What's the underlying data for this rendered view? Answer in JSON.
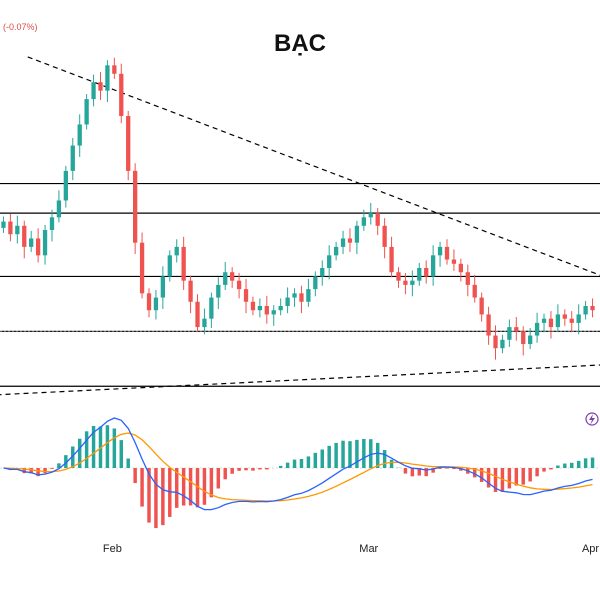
{
  "chart_data": {
    "type": "candlestick",
    "title": "BẠC",
    "change_text": "(-0.07%)",
    "x_tick_labels": [
      "Feb",
      "Mar",
      "Apr"
    ],
    "colors": {
      "up": "#26a69a",
      "down": "#ef5350",
      "macd_line": "#2962ff",
      "signal_line": "#ff9800",
      "hist_up": "#26a69a",
      "hist_down": "#ef5350",
      "levels": "#000000",
      "trendline": "#000000"
    },
    "horizontal_levels": [
      33.6,
      32.9,
      31.4,
      30.1,
      28.8
    ],
    "trendlines": [
      {
        "label": "falling",
        "points": [
          [
            4,
            36.6
          ],
          [
            111,
            29.9
          ]
        ]
      },
      {
        "label": "rising",
        "points": [
          [
            0,
            28.6
          ],
          [
            111,
            29.5
          ]
        ]
      }
    ],
    "closes": [
      32.7,
      32.4,
      32.6,
      32.1,
      32.3,
      31.9,
      32.5,
      32.8,
      33.2,
      33.9,
      34.5,
      35.0,
      35.6,
      36.0,
      35.8,
      36.4,
      36.2,
      35.2,
      33.9,
      32.2,
      31.0,
      30.6,
      30.9,
      31.4,
      31.9,
      32.1,
      31.3,
      30.8,
      30.2,
      30.4,
      30.9,
      31.2,
      31.5,
      31.3,
      31.1,
      30.8,
      30.6,
      30.7,
      30.5,
      30.6,
      30.7,
      30.9,
      31.0,
      30.8,
      31.1,
      31.4,
      31.6,
      31.9,
      32.1,
      32.3,
      32.2,
      32.6,
      32.8,
      32.9,
      32.6,
      32.1,
      31.5,
      31.3,
      31.2,
      31.3,
      31.6,
      31.4,
      31.9,
      32.1,
      31.8,
      31.7,
      31.5,
      31.2,
      30.9,
      30.5,
      30.0,
      29.7,
      29.9,
      30.2,
      30.1,
      29.8,
      30.0,
      30.3,
      30.4,
      30.2,
      30.5,
      30.4,
      30.3,
      30.5,
      30.7,
      30.6
    ]
  }
}
